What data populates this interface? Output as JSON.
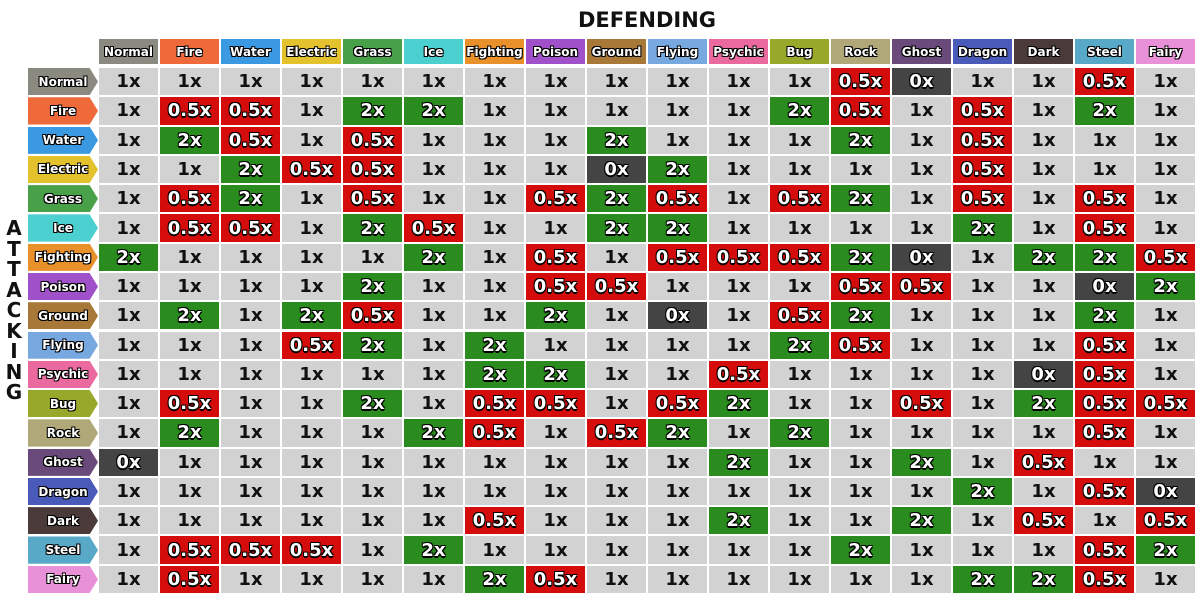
{
  "title": "DEFENDING",
  "side_label": "ATTACKING",
  "types": [
    {
      "name": "Normal",
      "color": "#8a8a80"
    },
    {
      "name": "Fire",
      "color": "#ee6a3a"
    },
    {
      "name": "Water",
      "color": "#3a99e0"
    },
    {
      "name": "Electric",
      "color": "#e3c22e"
    },
    {
      "name": "Grass",
      "color": "#48a048"
    },
    {
      "name": "Ice",
      "color": "#4ccfcf"
    },
    {
      "name": "Fighting",
      "color": "#e8902a"
    },
    {
      "name": "Poison",
      "color": "#a050c8"
    },
    {
      "name": "Ground",
      "color": "#a87838"
    },
    {
      "name": "Flying",
      "color": "#78a8e0"
    },
    {
      "name": "Psychic",
      "color": "#ea6aa0"
    },
    {
      "name": "Bug",
      "color": "#98a82a"
    },
    {
      "name": "Rock",
      "color": "#b0a878"
    },
    {
      "name": "Ghost",
      "color": "#6a4a7a"
    },
    {
      "name": "Dragon",
      "color": "#4a5ab8"
    },
    {
      "name": "Dark",
      "color": "#4a3a3a"
    },
    {
      "name": "Steel",
      "color": "#58a8c8"
    },
    {
      "name": "Fairy",
      "color": "#e890d8"
    }
  ],
  "cell_styles": {
    "1x": {
      "bg": "#d2d2d2",
      "fg": "#111111",
      "outline": false
    },
    "2x": {
      "bg": "#2a8c1e",
      "fg": "#ffffff",
      "outline": true
    },
    "0.5x": {
      "bg": "#d40c0c",
      "fg": "#ffffff",
      "outline": true
    },
    "0x": {
      "bg": "#444444",
      "fg": "#ffffff",
      "outline": true
    }
  },
  "rows": [
    [
      "1x",
      "1x",
      "1x",
      "1x",
      "1x",
      "1x",
      "1x",
      "1x",
      "1x",
      "1x",
      "1x",
      "1x",
      "0.5x",
      "0x",
      "1x",
      "1x",
      "0.5x",
      "1x"
    ],
    [
      "1x",
      "0.5x",
      "0.5x",
      "1x",
      "2x",
      "2x",
      "1x",
      "1x",
      "1x",
      "1x",
      "1x",
      "2x",
      "0.5x",
      "1x",
      "0.5x",
      "1x",
      "2x",
      "1x"
    ],
    [
      "1x",
      "2x",
      "0.5x",
      "1x",
      "0.5x",
      "1x",
      "1x",
      "1x",
      "2x",
      "1x",
      "1x",
      "1x",
      "2x",
      "1x",
      "0.5x",
      "1x",
      "1x",
      "1x"
    ],
    [
      "1x",
      "1x",
      "2x",
      "0.5x",
      "0.5x",
      "1x",
      "1x",
      "1x",
      "0x",
      "2x",
      "1x",
      "1x",
      "1x",
      "1x",
      "0.5x",
      "1x",
      "1x",
      "1x"
    ],
    [
      "1x",
      "0.5x",
      "2x",
      "1x",
      "0.5x",
      "1x",
      "1x",
      "0.5x",
      "2x",
      "0.5x",
      "1x",
      "0.5x",
      "2x",
      "1x",
      "0.5x",
      "1x",
      "0.5x",
      "1x"
    ],
    [
      "1x",
      "0.5x",
      "0.5x",
      "1x",
      "2x",
      "0.5x",
      "1x",
      "1x",
      "2x",
      "2x",
      "1x",
      "1x",
      "1x",
      "1x",
      "2x",
      "1x",
      "0.5x",
      "1x"
    ],
    [
      "2x",
      "1x",
      "1x",
      "1x",
      "1x",
      "2x",
      "1x",
      "0.5x",
      "1x",
      "0.5x",
      "0.5x",
      "0.5x",
      "2x",
      "0x",
      "1x",
      "2x",
      "2x",
      "0.5x"
    ],
    [
      "1x",
      "1x",
      "1x",
      "1x",
      "2x",
      "1x",
      "1x",
      "0.5x",
      "0.5x",
      "1x",
      "1x",
      "1x",
      "0.5x",
      "0.5x",
      "1x",
      "1x",
      "0x",
      "2x"
    ],
    [
      "1x",
      "2x",
      "1x",
      "2x",
      "0.5x",
      "1x",
      "1x",
      "2x",
      "1x",
      "0x",
      "1x",
      "0.5x",
      "2x",
      "1x",
      "1x",
      "1x",
      "2x",
      "1x"
    ],
    [
      "1x",
      "1x",
      "1x",
      "0.5x",
      "2x",
      "1x",
      "2x",
      "1x",
      "1x",
      "1x",
      "1x",
      "2x",
      "0.5x",
      "1x",
      "1x",
      "1x",
      "0.5x",
      "1x"
    ],
    [
      "1x",
      "1x",
      "1x",
      "1x",
      "1x",
      "1x",
      "2x",
      "2x",
      "1x",
      "1x",
      "0.5x",
      "1x",
      "1x",
      "1x",
      "1x",
      "0x",
      "0.5x",
      "1x"
    ],
    [
      "1x",
      "0.5x",
      "1x",
      "1x",
      "2x",
      "1x",
      "0.5x",
      "0.5x",
      "1x",
      "0.5x",
      "2x",
      "1x",
      "1x",
      "0.5x",
      "1x",
      "2x",
      "0.5x",
      "0.5x"
    ],
    [
      "1x",
      "2x",
      "1x",
      "1x",
      "1x",
      "2x",
      "0.5x",
      "1x",
      "0.5x",
      "2x",
      "1x",
      "2x",
      "1x",
      "1x",
      "1x",
      "1x",
      "0.5x",
      "1x"
    ],
    [
      "0x",
      "1x",
      "1x",
      "1x",
      "1x",
      "1x",
      "1x",
      "1x",
      "1x",
      "1x",
      "2x",
      "1x",
      "1x",
      "2x",
      "1x",
      "0.5x",
      "1x",
      "1x"
    ],
    [
      "1x",
      "1x",
      "1x",
      "1x",
      "1x",
      "1x",
      "1x",
      "1x",
      "1x",
      "1x",
      "1x",
      "1x",
      "1x",
      "1x",
      "2x",
      "1x",
      "0.5x",
      "0x"
    ],
    [
      "1x",
      "1x",
      "1x",
      "1x",
      "1x",
      "1x",
      "0.5x",
      "1x",
      "1x",
      "1x",
      "2x",
      "1x",
      "1x",
      "2x",
      "1x",
      "0.5x",
      "1x",
      "0.5x"
    ],
    [
      "1x",
      "0.5x",
      "0.5x",
      "0.5x",
      "1x",
      "2x",
      "1x",
      "1x",
      "1x",
      "1x",
      "1x",
      "1x",
      "2x",
      "1x",
      "1x",
      "1x",
      "0.5x",
      "2x"
    ],
    [
      "1x",
      "0.5x",
      "1x",
      "1x",
      "1x",
      "1x",
      "2x",
      "0.5x",
      "1x",
      "1x",
      "1x",
      "1x",
      "1x",
      "1x",
      "2x",
      "2x",
      "0.5x",
      "1x"
    ]
  ]
}
